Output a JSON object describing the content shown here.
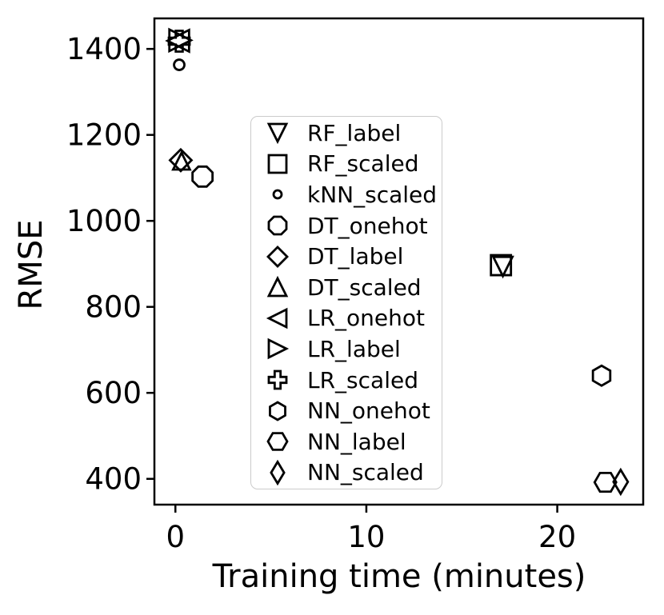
{
  "chart_data": {
    "type": "scatter",
    "title": "",
    "xlabel": "Training time (minutes)",
    "ylabel": "RMSE",
    "xlim": [
      -1.1,
      24.5
    ],
    "ylim": [
      340,
      1471
    ],
    "xticks": [
      0,
      10,
      20
    ],
    "yticks": [
      400,
      600,
      800,
      1000,
      1200,
      1400
    ],
    "grid": false,
    "legend_position": "center",
    "colors": {
      "marker": "#000000",
      "text": "#000000",
      "legend_border": "#cbcbcb",
      "background": "#ffffff"
    },
    "series": [
      {
        "name": "RF_label",
        "marker": "triangle_down",
        "x": 17.15,
        "y": 894,
        "size": 24
      },
      {
        "name": "RF_scaled",
        "marker": "square",
        "x": 17.05,
        "y": 897,
        "size": 25
      },
      {
        "name": "kNN_scaled",
        "marker": "circle_small",
        "x": 0.2,
        "y": 1363,
        "size": 13
      },
      {
        "name": "DT_onehot",
        "marker": "octagon",
        "x": 1.42,
        "y": 1103,
        "size": 25
      },
      {
        "name": "DT_label",
        "marker": "diamond",
        "x": 0.28,
        "y": 1141,
        "size": 27
      },
      {
        "name": "DT_scaled",
        "marker": "triangle_up",
        "x": 0.32,
        "y": 1139,
        "size": 21
      },
      {
        "name": "LR_onehot",
        "marker": "triangle_left",
        "x": 0.15,
        "y": 1419,
        "size": 27
      },
      {
        "name": "LR_label",
        "marker": "triangle_right",
        "x": 0.25,
        "y": 1420,
        "size": 27
      },
      {
        "name": "LR_scaled",
        "marker": "plus",
        "x": 0.2,
        "y": 1418,
        "size": 26
      },
      {
        "name": "NN_onehot",
        "marker": "hexagon_vertical",
        "x": 22.32,
        "y": 640,
        "size": 25
      },
      {
        "name": "NN_label",
        "marker": "hexagon_horizontal",
        "x": 22.52,
        "y": 392,
        "size": 27
      },
      {
        "name": "NN_scaled",
        "marker": "thin_diamond",
        "x": 23.32,
        "y": 393,
        "size": 30
      }
    ]
  }
}
